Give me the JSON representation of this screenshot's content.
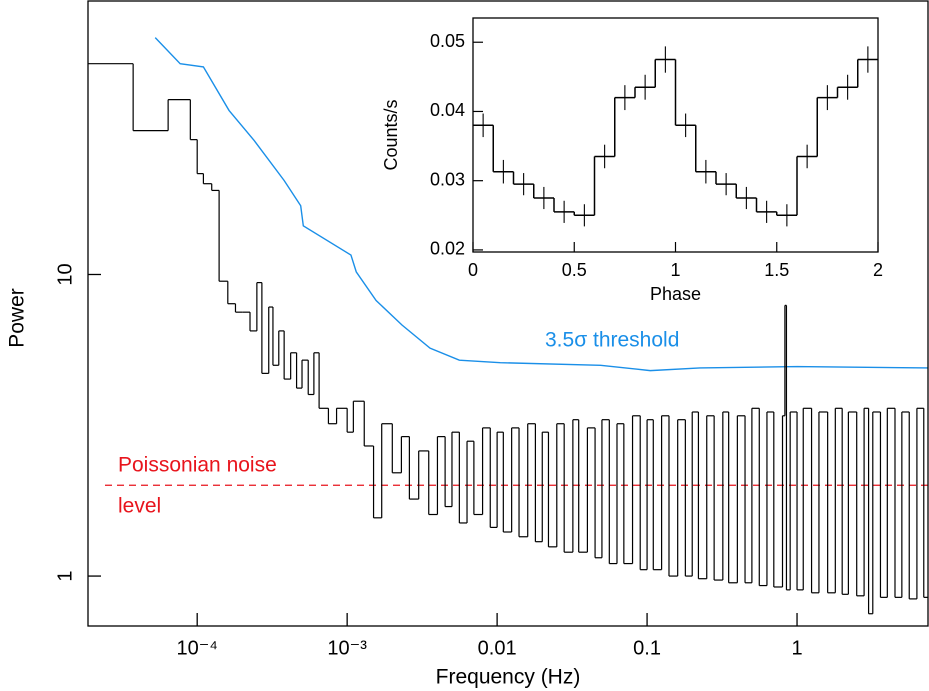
{
  "chart_data": [
    {
      "type": "line",
      "x_label": "Frequency (Hz)",
      "y_label": "Power",
      "log_x": true,
      "log_y": true,
      "xlim": [
        1.87e-05,
        7.47
      ],
      "ylim": [
        0.683,
        80.7
      ],
      "xticks": [
        {
          "value": 0.0001,
          "label": "10⁻⁴"
        },
        {
          "value": 0.001,
          "label": "10⁻³"
        },
        0.01,
        0.1,
        1
      ],
      "yticks": [
        1,
        10
      ],
      "series": [
        {
          "name": "3.5σ threshold",
          "color": "#1a8fe8",
          "drawstyle": "line",
          "x": [
            5.25e-05,
            7.7e-05,
            0.00011,
            0.000163,
            0.00024,
            0.00038,
            0.00049,
            0.00051,
            0.00106,
            0.00115,
            0.00156,
            0.00232,
            0.00357,
            0.0056,
            0.0105,
            0.049,
            0.105,
            0.225,
            1,
            7.47
          ],
          "values": [
            61,
            50,
            48.8,
            35,
            27.8,
            20.5,
            16.9,
            14.5,
            11.6,
            10.2,
            8.2,
            6.8,
            5.7,
            5.2,
            5.1,
            5.0,
            4.8,
            4.9,
            4.95,
            4.9
          ]
        },
        {
          "color": "#000000",
          "drawstyle": "steps",
          "x": [
            1.87e-05,
            3.74e-05,
            6.4e-05,
            9e-05,
            0.0001,
            0.00011,
            0.000125,
            0.00014,
            0.00016,
            0.00018,
            0.0002,
            0.000225,
            0.00025,
            0.00027,
            0.0003,
            0.00032,
            0.00035,
            0.00038,
            0.00042,
            0.00046,
            0.0005,
            0.00055,
            0.0006,
            0.00065,
            0.00075,
            0.00085,
            0.001,
            0.0011,
            0.0013,
            0.0015,
            0.0017,
            0.002,
            0.0023,
            0.0026,
            0.003,
            0.0035,
            0.004,
            0.0045,
            0.005,
            0.0056,
            0.0063,
            0.007,
            0.008,
            0.009,
            0.01,
            0.011,
            0.0125,
            0.014,
            0.016,
            0.018,
            0.02,
            0.022,
            0.025,
            0.028,
            0.032,
            0.035,
            0.04,
            0.045,
            0.05,
            0.056,
            0.063,
            0.07,
            0.08,
            0.09,
            0.1,
            0.11,
            0.125,
            0.14,
            0.16,
            0.18,
            0.2,
            0.22,
            0.25,
            0.28,
            0.32,
            0.35,
            0.4,
            0.45,
            0.5,
            0.56,
            0.63,
            0.7,
            0.8,
            0.83,
            0.85,
            0.9,
            1.0,
            1.1,
            1.25,
            1.4,
            1.6,
            1.8,
            2.0,
            2.2,
            2.5,
            2.8,
            3.0,
            3.2,
            3.6,
            4.0,
            4.5,
            5.0,
            5.6,
            6.3,
            7.0
          ],
          "values": [
            50,
            30,
            38,
            28,
            21.6,
            20,
            19,
            9.5,
            8,
            7.5,
            7.5,
            6.5,
            9.4,
            4.7,
            7.8,
            5.0,
            6.5,
            4.5,
            5.5,
            4.2,
            5.2,
            4.0,
            5.5,
            3.6,
            3.2,
            3.6,
            3.0,
            3.8,
            2.7,
            1.56,
            3.2,
            2.2,
            2.9,
            1.8,
            2.6,
            1.6,
            2.9,
            1.7,
            3.0,
            1.5,
            2.8,
            1.6,
            3.1,
            1.45,
            3.0,
            1.4,
            3.1,
            1.35,
            3.2,
            1.3,
            3.0,
            1.25,
            3.2,
            1.2,
            3.3,
            1.2,
            3.1,
            1.15,
            3.3,
            1.1,
            3.2,
            1.1,
            3.4,
            1.05,
            3.3,
            1.05,
            3.4,
            1.0,
            3.3,
            1.0,
            3.5,
            0.98,
            3.4,
            0.97,
            3.5,
            0.95,
            3.4,
            0.95,
            3.6,
            0.93,
            3.5,
            0.92,
            3.4,
            7.9,
            0.9,
            3.5,
            0.9,
            3.6,
            0.88,
            3.5,
            0.88,
            3.6,
            0.87,
            3.5,
            0.86,
            3.6,
            0.75,
            3.5,
            0.85,
            3.6,
            0.85,
            3.5,
            0.84,
            3.6,
            0.85
          ]
        }
      ],
      "reference_line": {
        "value": 2,
        "color": "#e8141c",
        "style": "dashed",
        "label_lines": [
          "Poissonian noise",
          "level"
        ]
      }
    },
    {
      "type": "histogram",
      "x_label": "Phase",
      "y_label": "Counts/s",
      "xlim": [
        0,
        2
      ],
      "ylim": [
        0.0197,
        0.0535
      ],
      "xticks": [
        0,
        0.5,
        1,
        1.5,
        2
      ],
      "yticks": [
        0.02,
        0.03,
        0.04,
        0.05
      ],
      "color": "#000000",
      "bins": [
        0,
        0.1,
        0.2,
        0.3,
        0.4,
        0.5,
        0.6,
        0.7,
        0.8,
        0.9,
        1.0,
        1.1,
        1.2,
        1.3,
        1.4,
        1.5,
        1.6,
        1.7,
        1.8,
        1.9,
        2.0
      ],
      "values": [
        0.038,
        0.0313,
        0.0295,
        0.0275,
        0.0255,
        0.025,
        0.0335,
        0.042,
        0.0435,
        0.0475,
        0.038,
        0.0313,
        0.0295,
        0.0275,
        0.0255,
        0.025,
        0.0335,
        0.042,
        0.0435,
        0.0475
      ],
      "errors": [
        0.0017,
        0.0017,
        0.0016,
        0.0016,
        0.0016,
        0.0016,
        0.0017,
        0.0018,
        0.0018,
        0.0019,
        0.0017,
        0.0017,
        0.0016,
        0.0016,
        0.0016,
        0.0016,
        0.0017,
        0.0018,
        0.0018,
        0.0019
      ]
    }
  ]
}
